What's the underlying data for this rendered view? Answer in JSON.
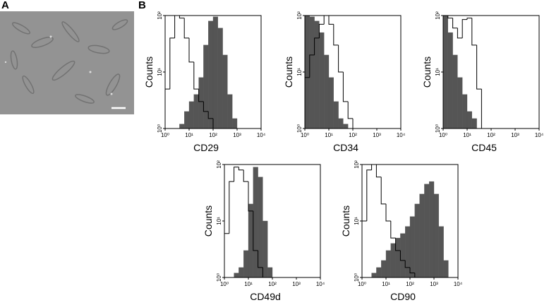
{
  "panel_labels": [
    "A",
    "B"
  ],
  "chart_data": [
    {
      "type": "histogram",
      "xlabel": "CD29",
      "ylabel": "Counts",
      "xscale": "log",
      "yscale": "log",
      "xlim": [
        1,
        10000
      ],
      "ylim": [
        1,
        100
      ],
      "xticks": [
        {
          "value": 1,
          "label": "10⁰"
        },
        {
          "value": 10,
          "label": "10¹"
        },
        {
          "value": 100,
          "label": "10²"
        },
        {
          "value": 1000,
          "label": "10³"
        },
        {
          "value": 10000,
          "label": "10⁴"
        }
      ],
      "yticks": [
        {
          "value": 1,
          "label": "10⁰"
        },
        {
          "value": 10,
          "label": "10¹"
        },
        {
          "value": 100,
          "label": "10²"
        }
      ],
      "bins": [
        1,
        1.585,
        2.512,
        3.981,
        6.31,
        10,
        15.85,
        25.12,
        39.81,
        63.1,
        100,
        158.5,
        251.2,
        398.1,
        631,
        1000,
        1585,
        2512,
        3981,
        6310,
        10000
      ],
      "series": [
        {
          "color": "#ffffff",
          "values": [
            5,
            40,
            100,
            90,
            40,
            15,
            5,
            3,
            2,
            1.5,
            0,
            0,
            0,
            0,
            0,
            0,
            0,
            0,
            0,
            0
          ]
        },
        {
          "color": "#555555",
          "values": [
            0,
            0,
            0,
            1.2,
            2,
            3,
            4,
            8,
            30,
            80,
            95,
            60,
            20,
            4,
            1.5,
            0,
            0,
            0,
            0,
            0
          ]
        }
      ]
    },
    {
      "type": "histogram",
      "xlabel": "CD34",
      "ylabel": "Counts",
      "xscale": "log",
      "yscale": "log",
      "xlim": [
        1,
        10000
      ],
      "ylim": [
        1,
        100
      ],
      "xticks": [
        {
          "value": 1,
          "label": "10⁰"
        },
        {
          "value": 10,
          "label": "10¹"
        },
        {
          "value": 100,
          "label": "10²"
        },
        {
          "value": 1000,
          "label": "10³"
        },
        {
          "value": 10000,
          "label": "10⁴"
        }
      ],
      "yticks": [
        {
          "value": 1,
          "label": "10⁰"
        },
        {
          "value": 10,
          "label": "10¹"
        },
        {
          "value": 100,
          "label": "10²"
        }
      ],
      "bins": [
        1,
        1.585,
        2.512,
        3.981,
        6.31,
        10,
        15.85,
        25.12,
        39.81,
        63.1,
        100,
        158.5,
        251.2,
        398.1,
        631,
        1000,
        1585,
        2512,
        3981,
        6310,
        10000
      ],
      "series": [
        {
          "color": "#ffffff",
          "values": [
            8,
            20,
            40,
            70,
            100,
            70,
            30,
            10,
            3,
            1.5,
            0,
            0,
            0,
            0,
            0,
            0,
            0,
            0,
            0,
            0
          ]
        },
        {
          "color": "#555555",
          "values": [
            100,
            95,
            80,
            50,
            20,
            8,
            3,
            1.5,
            1.2,
            0,
            0,
            0,
            0,
            0,
            0,
            0,
            0,
            0,
            0,
            0
          ]
        }
      ]
    },
    {
      "type": "histogram",
      "xlabel": "CD45",
      "ylabel": "Counts",
      "xscale": "log",
      "yscale": "log",
      "xlim": [
        1,
        10000
      ],
      "ylim": [
        1,
        100
      ],
      "xticks": [
        {
          "value": 1,
          "label": "10⁰"
        },
        {
          "value": 10,
          "label": "10¹"
        },
        {
          "value": 100,
          "label": "10²"
        },
        {
          "value": 1000,
          "label": "10³"
        },
        {
          "value": 10000,
          "label": "10⁴"
        }
      ],
      "yticks": [
        {
          "value": 1,
          "label": "10⁰"
        },
        {
          "value": 10,
          "label": "10¹"
        },
        {
          "value": 100,
          "label": "10²"
        }
      ],
      "bins": [
        1,
        1.585,
        2.512,
        3.981,
        6.31,
        10,
        15.85,
        25.12,
        39.81,
        63.1,
        100,
        158.5,
        251.2,
        398.1,
        631,
        1000,
        1585,
        2512,
        3981,
        6310,
        10000
      ],
      "series": [
        {
          "color": "#ffffff",
          "values": [
            100,
            90,
            60,
            40,
            85,
            90,
            30,
            5,
            0,
            0,
            0,
            0,
            0,
            0,
            0,
            0,
            0,
            0,
            0,
            0
          ]
        },
        {
          "color": "#555555",
          "values": [
            100,
            50,
            20,
            8,
            4,
            2,
            1.5,
            0,
            0,
            0,
            0,
            0,
            0,
            0,
            0,
            0,
            0,
            0,
            0,
            0
          ]
        }
      ]
    },
    {
      "type": "histogram",
      "xlabel": "CD49d",
      "ylabel": "Counts",
      "xscale": "log",
      "yscale": "log",
      "xlim": [
        1,
        10000
      ],
      "ylim": [
        1,
        100
      ],
      "xticks": [
        {
          "value": 1,
          "label": "10⁰"
        },
        {
          "value": 10,
          "label": "10¹"
        },
        {
          "value": 100,
          "label": "10²"
        },
        {
          "value": 1000,
          "label": "10³"
        },
        {
          "value": 10000,
          "label": "10⁴"
        }
      ],
      "yticks": [
        {
          "value": 1,
          "label": "10⁰"
        },
        {
          "value": 10,
          "label": "10¹"
        },
        {
          "value": 100,
          "label": "10²"
        }
      ],
      "bins": [
        1,
        1.585,
        2.512,
        3.981,
        6.31,
        10,
        15.85,
        25.12,
        39.81,
        63.1,
        100,
        158.5,
        251.2,
        398.1,
        631,
        1000,
        1585,
        2512,
        3981,
        6310,
        10000
      ],
      "series": [
        {
          "color": "#ffffff",
          "values": [
            6,
            50,
            90,
            80,
            50,
            15,
            3,
            1.5,
            0,
            0,
            0,
            0,
            0,
            0,
            0,
            0,
            0,
            0,
            0,
            0
          ]
        },
        {
          "color": "#555555",
          "values": [
            0,
            0,
            1.2,
            1.5,
            3,
            20,
            90,
            60,
            10,
            1.5,
            0,
            0,
            0,
            0,
            0,
            0,
            0,
            0,
            0,
            0
          ]
        }
      ]
    },
    {
      "type": "histogram",
      "xlabel": "CD90",
      "ylabel": "Counts",
      "xscale": "log",
      "yscale": "log",
      "xlim": [
        1,
        10000
      ],
      "ylim": [
        1,
        100
      ],
      "xticks": [
        {
          "value": 1,
          "label": "10⁰"
        },
        {
          "value": 10,
          "label": "10¹"
        },
        {
          "value": 100,
          "label": "10²"
        },
        {
          "value": 1000,
          "label": "10³"
        },
        {
          "value": 10000,
          "label": "10⁴"
        }
      ],
      "yticks": [
        {
          "value": 1,
          "label": "10⁰"
        },
        {
          "value": 10,
          "label": "10¹"
        },
        {
          "value": 100,
          "label": "10²"
        }
      ],
      "bins": [
        1,
        1.585,
        2.512,
        3.981,
        6.31,
        10,
        15.85,
        25.12,
        39.81,
        63.1,
        100,
        158.5,
        251.2,
        398.1,
        631,
        1000,
        1585,
        2512,
        3981,
        6310,
        10000
      ],
      "series": [
        {
          "color": "#ffffff",
          "values": [
            10,
            80,
            100,
            60,
            20,
            10,
            5,
            3,
            2,
            1.5,
            1.2,
            0,
            0,
            0,
            0,
            0,
            0,
            0,
            0,
            0
          ]
        },
        {
          "color": "#555555",
          "values": [
            0,
            0,
            1.2,
            1.5,
            2,
            3,
            4,
            5,
            6,
            8,
            12,
            20,
            30,
            45,
            50,
            30,
            8,
            2,
            0,
            0
          ]
        }
      ]
    }
  ]
}
